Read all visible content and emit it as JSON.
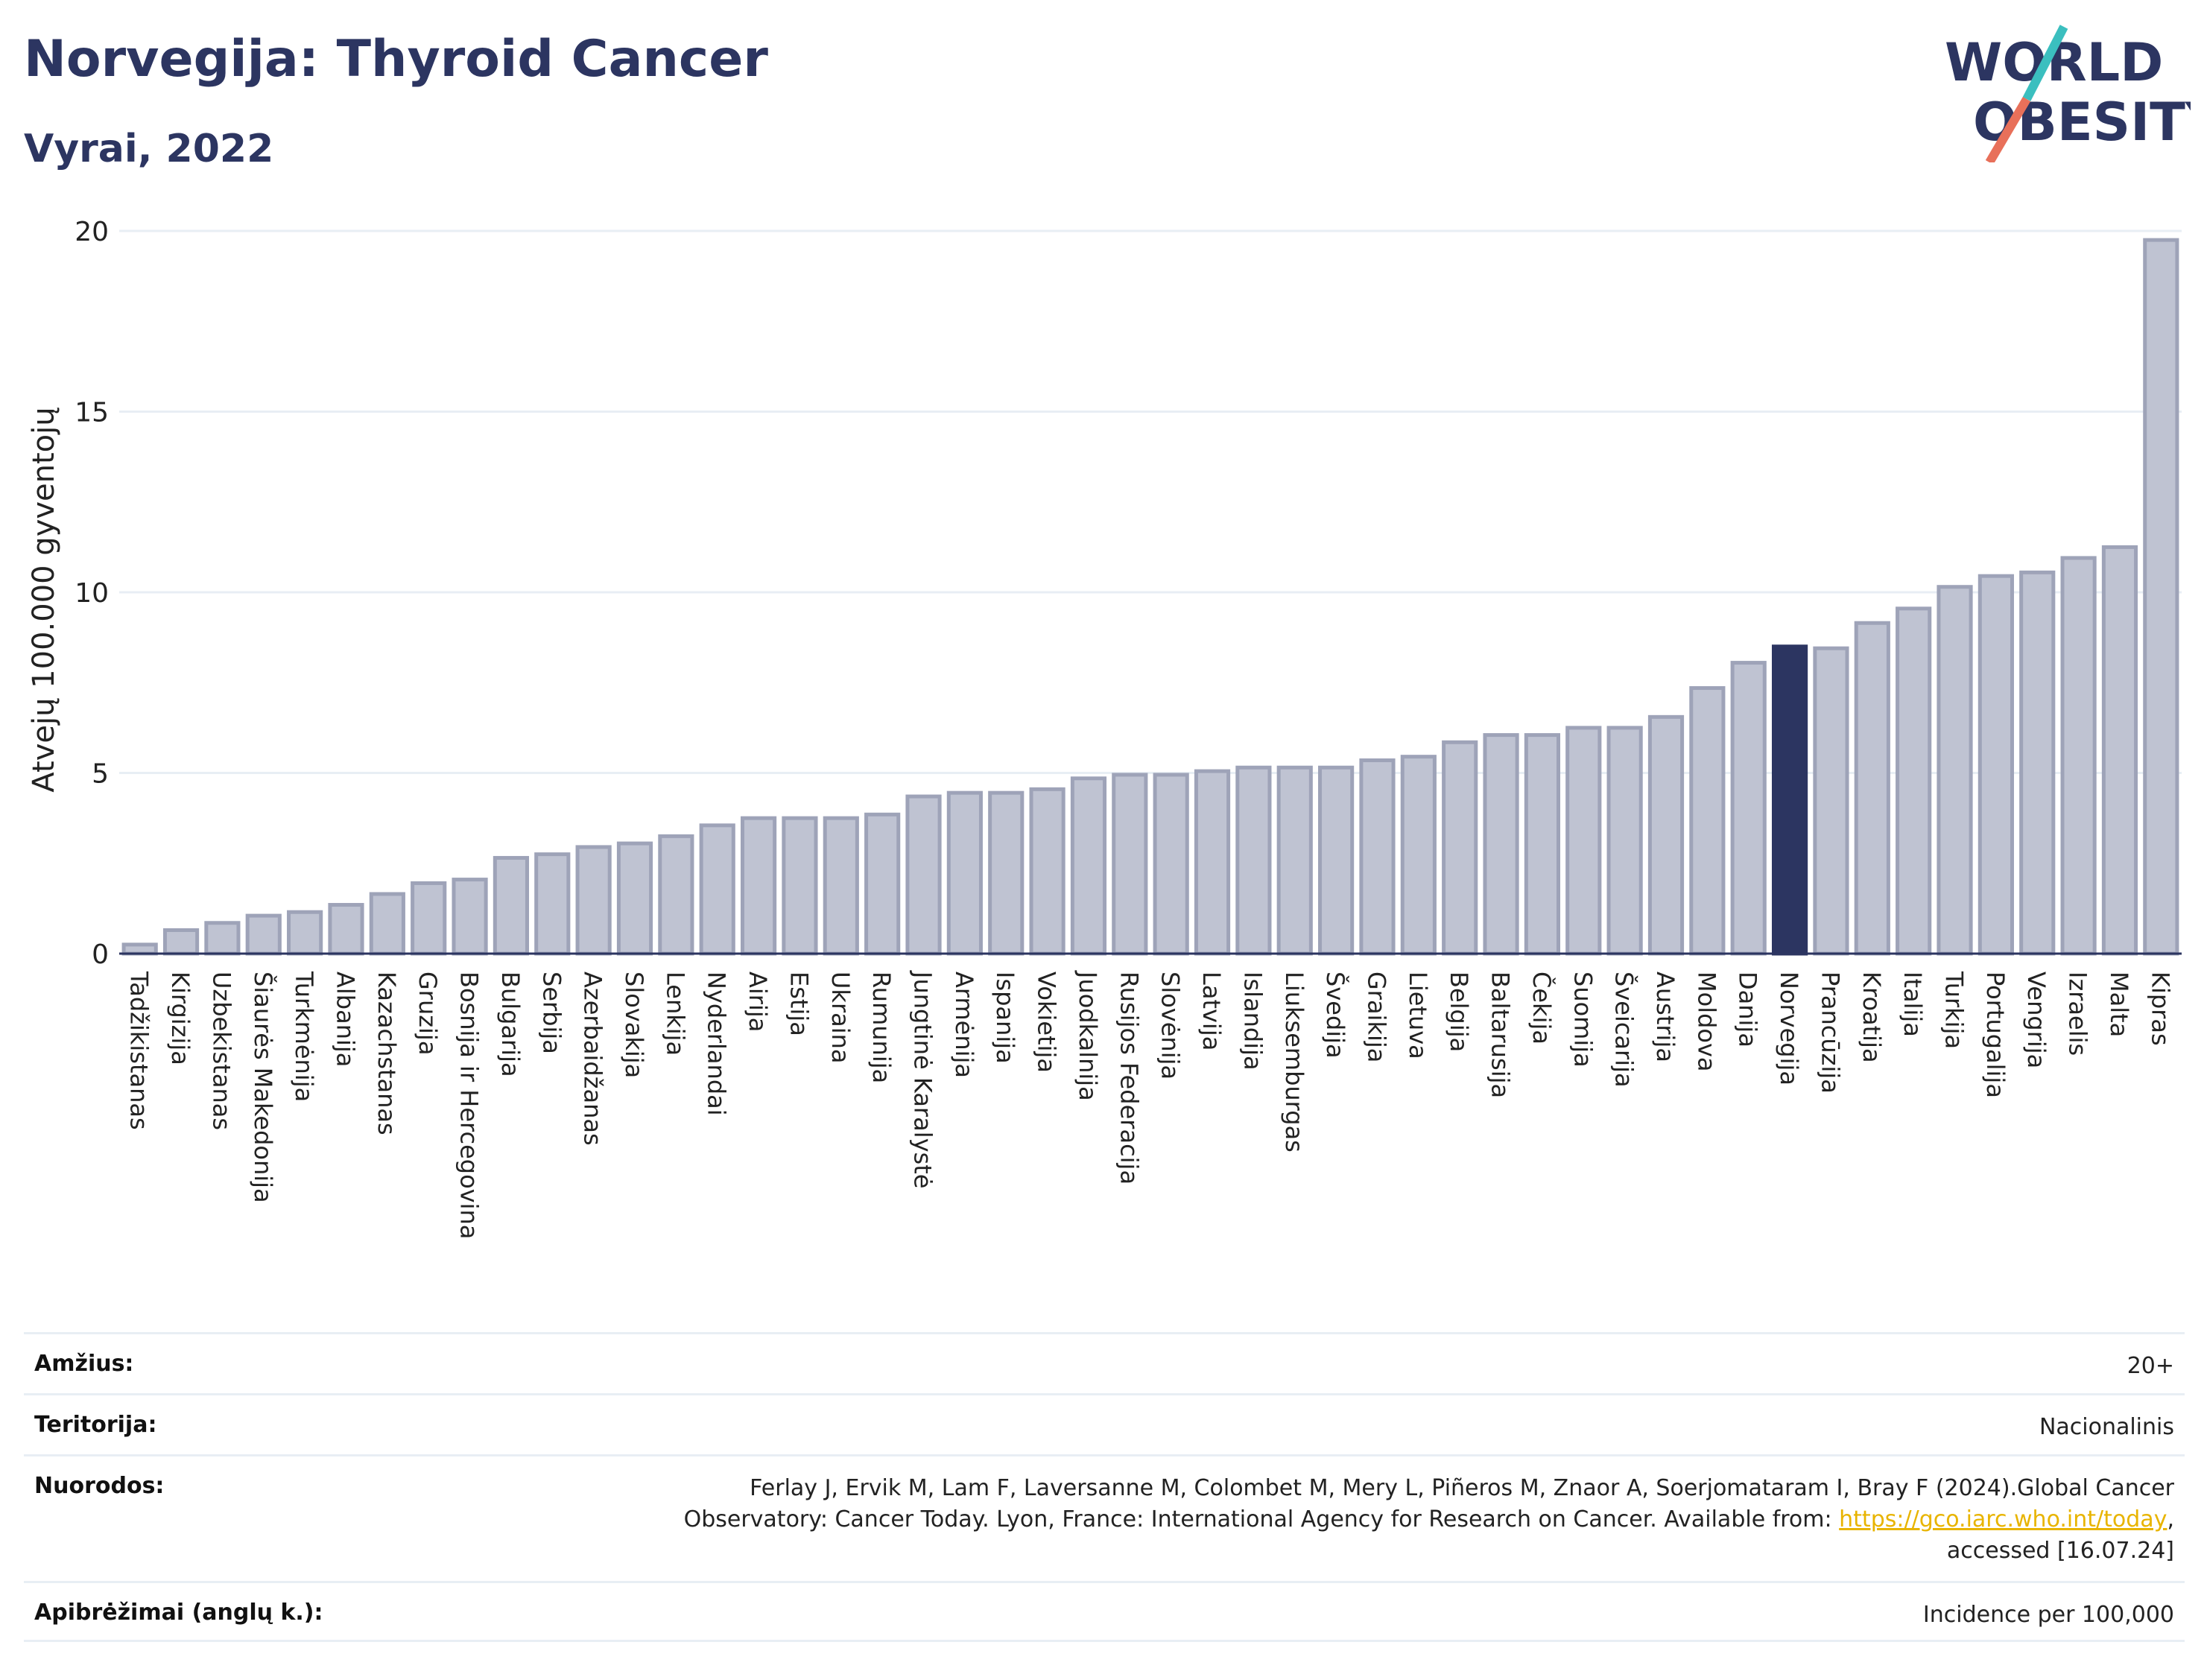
{
  "header": {
    "title": "Norvegija: Thyroid Cancer",
    "subtitle": "Vyrai, 2022"
  },
  "logo": {
    "line1": "WORLD",
    "line2": "OBESITY",
    "stripe_colors": [
      "#3bbfbf",
      "#e8705a"
    ]
  },
  "colors": {
    "bar": "#bfc3d2",
    "bar_stroke": "#9ea3b8",
    "highlight": "#2c3561",
    "text_dark": "#2c3561",
    "link": "#e8b400",
    "grid": "#e8eef4"
  },
  "chart_data": {
    "type": "bar",
    "ylabel": "Atvejų 100.000 gyventojų",
    "xlabel": "",
    "ylim": [
      0,
      20
    ],
    "yticks": [
      0,
      5,
      10,
      15,
      20
    ],
    "grid": true,
    "highlight_category": "Norvegija",
    "categories": [
      "Tadžikistanas",
      "Kirgizija",
      "Uzbekistanas",
      "Šiaurės Makedonija",
      "Turkmėnija",
      "Albanija",
      "Kazachstanas",
      "Gruzija",
      "Bosnija ir Hercegovina",
      "Bulgarija",
      "Serbija",
      "Azerbaidžanas",
      "Slovakija",
      "Lenkija",
      "Nyderlandai",
      "Airija",
      "Estija",
      "Ukraina",
      "Rumunija",
      "Jungtinė Karalystė",
      "Armėnija",
      "Ispanija",
      "Vokietija",
      "Juodkalnija",
      "Rusijos Federacija",
      "Slovėnija",
      "Latvija",
      "Islandija",
      "Liuksemburgas",
      "Švedija",
      "Graikija",
      "Lietuva",
      "Belgija",
      "Baltarusija",
      "Čekija",
      "Suomija",
      "Šveicarija",
      "Austrija",
      "Moldova",
      "Danija",
      "Norvegija",
      "Prancūzija",
      "Kroatija",
      "Italija",
      "Turkija",
      "Portugalija",
      "Vengrija",
      "Izraelis",
      "Malta",
      "Kipras"
    ],
    "values": [
      0.25,
      0.65,
      0.85,
      1.05,
      1.15,
      1.35,
      1.65,
      1.95,
      2.05,
      2.65,
      2.75,
      2.95,
      3.05,
      3.25,
      3.55,
      3.75,
      3.75,
      3.75,
      3.85,
      4.35,
      4.45,
      4.45,
      4.55,
      4.85,
      4.95,
      4.95,
      5.05,
      5.15,
      5.15,
      5.15,
      5.35,
      5.45,
      5.85,
      6.05,
      6.05,
      6.25,
      6.25,
      6.55,
      7.35,
      8.05,
      8.5,
      8.45,
      9.15,
      9.55,
      10.15,
      10.45,
      10.55,
      10.95,
      11.25,
      19.75
    ]
  },
  "meta": {
    "rows": [
      {
        "label": "Amžius:",
        "value": "20+"
      },
      {
        "label": "Teritorija:",
        "value": "Nacionalinis"
      },
      {
        "label": "Nuorodos:",
        "value_line1": "Ferlay J, Ervik M, Lam F, Laversanne M, Colombet M, Mery L, Piñeros M, Znaor A, Soerjomataram I, Bray F (2024).Global Cancer",
        "value_line2_pre": "Observatory: Cancer Today. Lyon, France: International Agency for Research on Cancer. Available from: ",
        "value_link": "https://gco.iarc.who.int/today",
        "value_line2_post": ",",
        "value_line3": "accessed [16.07.24]"
      },
      {
        "label": "Apibrėžimai (anglų k.):",
        "value": "Incidence per 100,000"
      }
    ]
  }
}
